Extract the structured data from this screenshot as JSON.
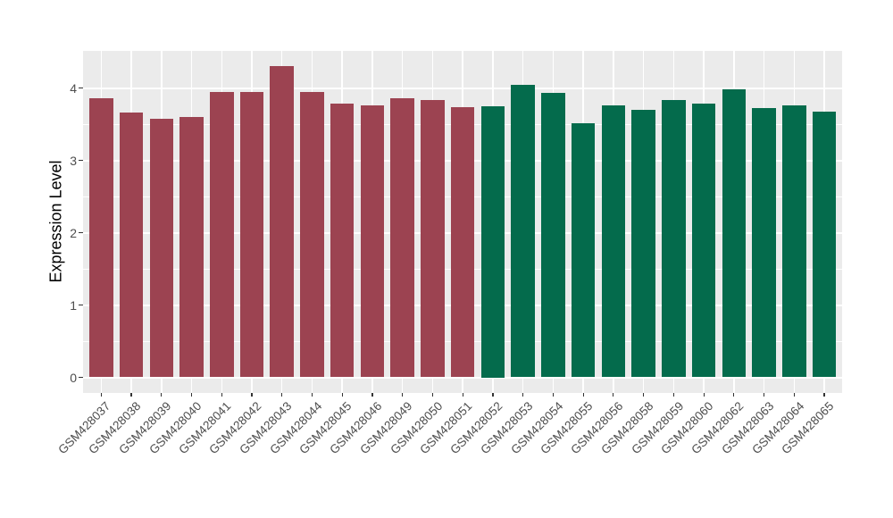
{
  "chart_data": {
    "type": "bar",
    "title": "",
    "xlabel": "",
    "ylabel": "Expression Level",
    "categories": [
      "GSM428037",
      "GSM428038",
      "GSM428039",
      "GSM428040",
      "GSM428041",
      "GSM428042",
      "GSM428043",
      "GSM428044",
      "GSM428045",
      "GSM428046",
      "GSM428049",
      "GSM428050",
      "GSM428051",
      "GSM428052",
      "GSM428053",
      "GSM428054",
      "GSM428055",
      "GSM428056",
      "GSM428058",
      "GSM428059",
      "GSM428060",
      "GSM428062",
      "GSM428063",
      "GSM428064",
      "GSM428065"
    ],
    "values": [
      3.86,
      3.66,
      3.57,
      3.6,
      3.94,
      3.94,
      4.3,
      3.94,
      3.79,
      3.76,
      3.86,
      3.83,
      3.74,
      3.75,
      4.04,
      3.93,
      3.51,
      3.76,
      3.7,
      3.83,
      3.79,
      3.98,
      3.72,
      3.76,
      3.67
    ],
    "bar_colors": [
      "#9C4351",
      "#9C4351",
      "#9C4351",
      "#9C4351",
      "#9C4351",
      "#9C4351",
      "#9C4351",
      "#9C4351",
      "#9C4351",
      "#9C4351",
      "#9C4351",
      "#9C4351",
      "#9C4351",
      "#046B4C",
      "#046B4C",
      "#046B4C",
      "#046B4C",
      "#046B4C",
      "#046B4C",
      "#046B4C",
      "#046B4C",
      "#046B4C",
      "#046B4C",
      "#046B4C",
      "#046B4C"
    ],
    "group_colors": {
      "left_group_red": "#9C4351",
      "right_group_green": "#046B4C"
    },
    "yticks": [
      0,
      1,
      2,
      3,
      4
    ],
    "ylim": [
      -0.22,
      4.5
    ],
    "x_tick_angle": 45,
    "grid": true,
    "legend_position": "none",
    "panel_background": "#EBEBEB",
    "gridline_color": "#FFFFFF",
    "tick_mark_color": "#333333",
    "axis_text_color": "#4D4D4D",
    "axis_title_color": "#000000"
  }
}
